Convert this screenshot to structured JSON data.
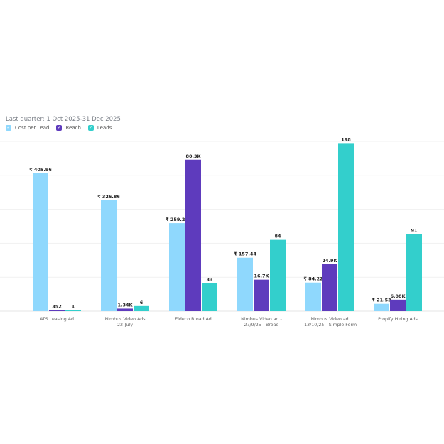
{
  "chart_data": {
    "type": "bar",
    "title": "",
    "subtitle": "Last quarter: 1 Oct 2025-31 Dec 2025",
    "categories": [
      [
        "ATS Leasing Ad"
      ],
      [
        "Nimbus Video Ads",
        "22-July"
      ],
      [
        "Eldeco Broad Ad"
      ],
      [
        "Nimbus Video ad -",
        "27/9/25 - Broad"
      ],
      [
        "Nimbus Video ad",
        "-13/10/25 - Simple Form"
      ],
      [
        "Propify Hiring Ads"
      ]
    ],
    "series": [
      {
        "name": "Cost per Lead",
        "color": "#8fd8fd",
        "values": [
          405.96,
          326.86,
          259.2,
          157.44,
          84.22,
          21.53
        ],
        "labels": [
          "₹ 405.96",
          "₹ 326.86",
          "₹ 259.20",
          "₹ 157.44",
          "₹ 84.22",
          "₹ 21.53"
        ],
        "ylim": [
          0,
          500
        ]
      },
      {
        "name": "Reach",
        "color": "#5e3bbd",
        "values": [
          352,
          1340,
          80300,
          16700,
          24900,
          6080
        ],
        "labels": [
          "352",
          "1.34K",
          "80.3K",
          "16.7K",
          "24.9K",
          "6.08K"
        ],
        "ylim": [
          0,
          90000
        ]
      },
      {
        "name": "Leads",
        "color": "#33cfcc",
        "values": [
          1,
          6,
          33,
          84,
          198,
          91
        ],
        "labels": [
          "1",
          "6",
          "33",
          "84",
          "198",
          "91"
        ],
        "ylim": [
          0,
          200
        ]
      }
    ],
    "grid": true,
    "legend_position": "top-left",
    "check_mark": "✓"
  }
}
